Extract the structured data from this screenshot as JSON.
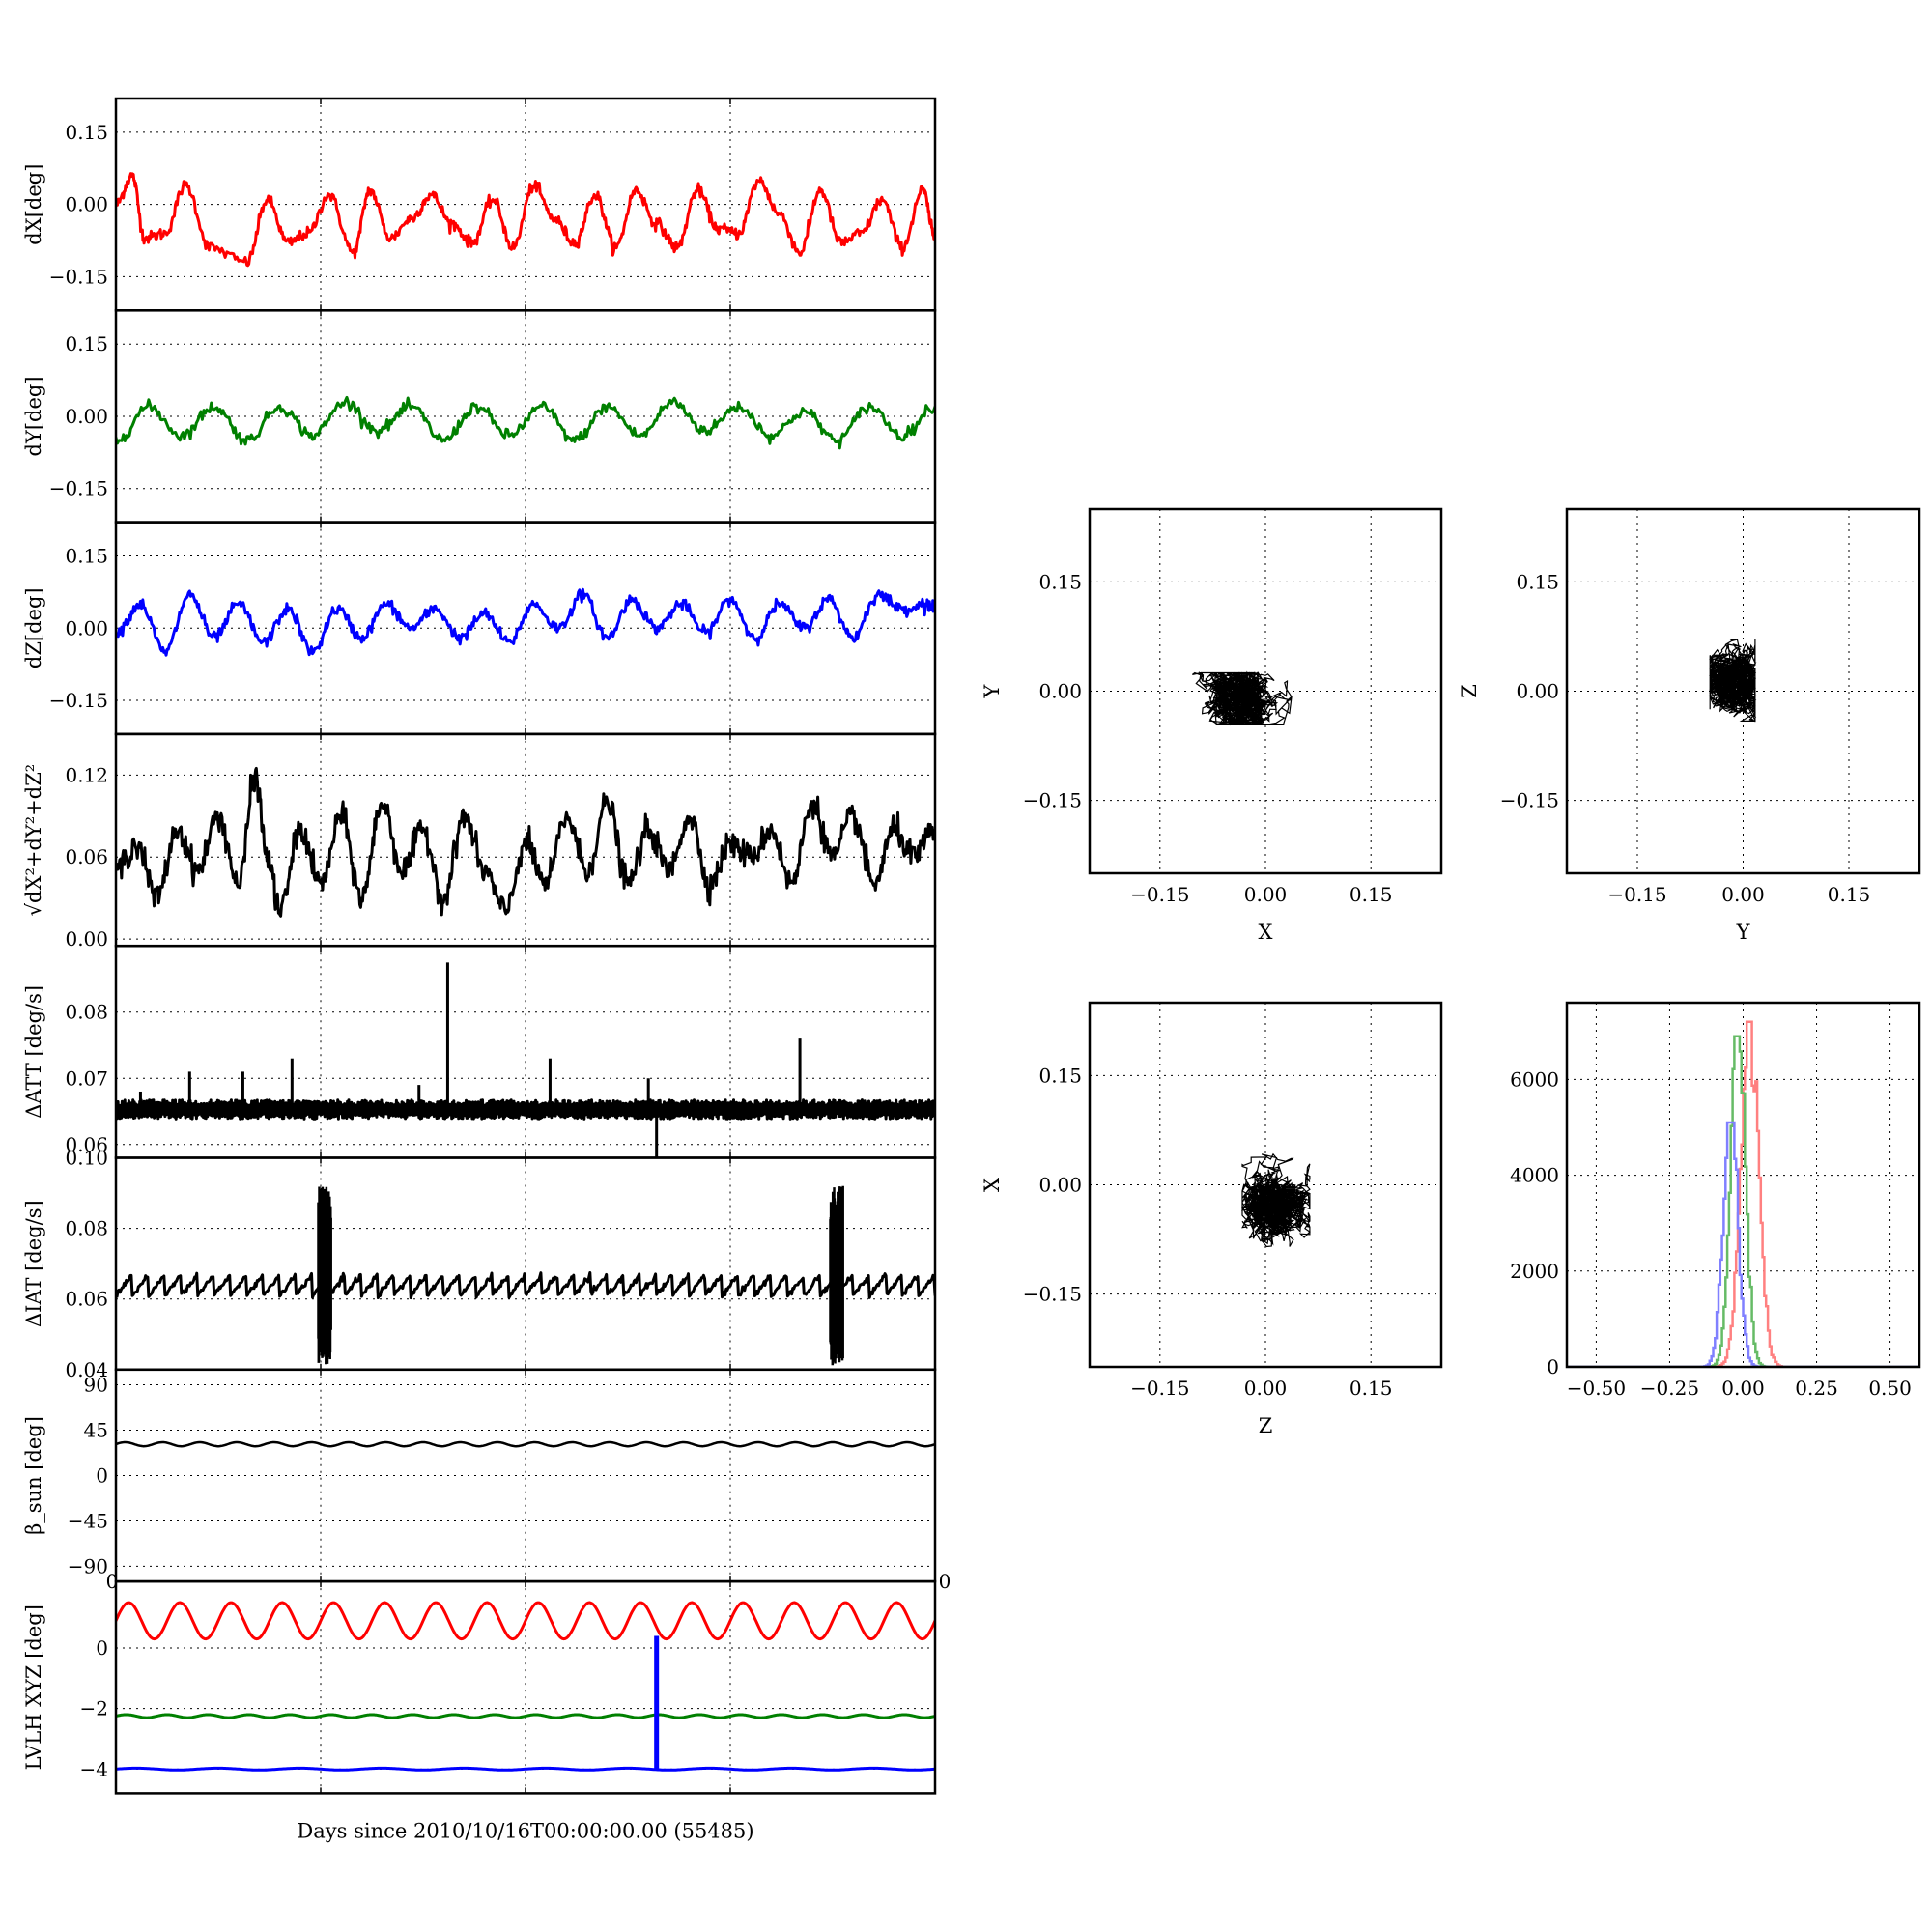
{
  "chart_data": [
    {
      "id": "ts_dx",
      "type": "line",
      "ylabel": "dX[deg]",
      "ylim": [
        -0.22,
        0.22
      ],
      "yticks": [
        0.15,
        0.0,
        -0.15
      ],
      "ytick_labels": [
        "0.15",
        "0.00",
        "−0.15"
      ],
      "xlim": [
        0,
        10
      ],
      "xticks": [
        0,
        2.5,
        5,
        7.5,
        10
      ],
      "grid": true,
      "series": [
        {
          "color": "#ff0000",
          "x": [
            0,
            0.2,
            0.35,
            0.6,
            0.85,
            1.15,
            1.6,
            1.85,
            2.1,
            2.35,
            2.6,
            2.9,
            3.1,
            3.35,
            3.6,
            3.85,
            4.1,
            4.35,
            4.6,
            4.85,
            5.1,
            5.35,
            5.6,
            5.85,
            6.1,
            6.35,
            6.6,
            6.85,
            7.1,
            7.35,
            7.6,
            7.85,
            8.1,
            8.35,
            8.6,
            8.85,
            9.1,
            9.35,
            9.6,
            9.85,
            10
          ],
          "y": [
            0,
            0.06,
            -0.07,
            -0.06,
            0.04,
            -0.09,
            -0.12,
            0.01,
            -0.08,
            -0.06,
            0.02,
            -0.1,
            0.03,
            -0.07,
            -0.03,
            0.02,
            -0.04,
            -0.08,
            0.01,
            -0.09,
            0.04,
            -0.03,
            -0.08,
            0.02,
            -0.09,
            0.03,
            -0.04,
            -0.09,
            0.03,
            -0.05,
            -0.06,
            0.05,
            -0.02,
            -0.1,
            0.03,
            -0.08,
            -0.06,
            0.01,
            -0.09,
            0.03,
            -0.07
          ]
        }
      ]
    },
    {
      "id": "ts_dy",
      "type": "line",
      "ylabel": "dY[deg]",
      "ylim": [
        -0.22,
        0.22
      ],
      "yticks": [
        0.15,
        0.0,
        -0.15
      ],
      "ytick_labels": [
        "0.15",
        "0.00",
        "−0.15"
      ],
      "xlim": [
        0,
        10
      ],
      "xticks": [
        0,
        2.5,
        5,
        7.5,
        10
      ],
      "grid": true,
      "series": [
        {
          "color": "#008000",
          "x": [
            0,
            0.4,
            0.8,
            1.2,
            1.6,
            2.0,
            2.4,
            2.8,
            3.2,
            3.6,
            4.0,
            4.4,
            4.8,
            5.2,
            5.6,
            6.0,
            6.4,
            6.8,
            7.2,
            7.6,
            8.0,
            8.4,
            8.8,
            9.2,
            9.6,
            10
          ],
          "y": [
            -0.05,
            0.02,
            -0.04,
            0.02,
            -0.05,
            0.02,
            -0.04,
            0.03,
            -0.03,
            0.02,
            -0.05,
            0.02,
            -0.04,
            0.02,
            -0.05,
            0.02,
            -0.04,
            0.03,
            -0.03,
            0.02,
            -0.04,
            0.01,
            -0.05,
            0.02,
            -0.04,
            0.02
          ]
        }
      ]
    },
    {
      "id": "ts_dz",
      "type": "line",
      "ylabel": "dZ[deg]",
      "ylim": [
        -0.22,
        0.22
      ],
      "yticks": [
        0.15,
        0.0,
        -0.15
      ],
      "ytick_labels": [
        "0.15",
        "0.00",
        "−0.15"
      ],
      "xlim": [
        0,
        10
      ],
      "xticks": [
        0,
        2.5,
        5,
        7.5,
        10
      ],
      "grid": true,
      "series": [
        {
          "color": "#0000ff",
          "x": [
            0,
            0.3,
            0.6,
            0.9,
            1.2,
            1.5,
            1.8,
            2.1,
            2.4,
            2.7,
            3.0,
            3.3,
            3.6,
            3.9,
            4.2,
            4.5,
            4.8,
            5.1,
            5.4,
            5.7,
            6.0,
            6.3,
            6.6,
            6.9,
            7.2,
            7.5,
            7.8,
            8.1,
            8.4,
            8.7,
            9.0,
            9.3,
            9.6,
            9.9,
            10
          ],
          "y": [
            -0.01,
            0.05,
            -0.05,
            0.07,
            -0.02,
            0.05,
            -0.03,
            0.04,
            -0.05,
            0.04,
            -0.02,
            0.05,
            0.0,
            0.04,
            -0.02,
            0.03,
            -0.03,
            0.05,
            0.0,
            0.07,
            -0.02,
            0.06,
            0.0,
            0.05,
            -0.01,
            0.06,
            -0.02,
            0.05,
            0.0,
            0.06,
            -0.02,
            0.07,
            0.04,
            0.05,
            0.04
          ]
        }
      ]
    },
    {
      "id": "ts_r",
      "type": "line",
      "ylabel": "√dX²+dY²+dZ²",
      "ylim": [
        -0.005,
        0.15
      ],
      "yticks": [
        0.12,
        0.06,
        0.0
      ],
      "ytick_labels": [
        "0.12",
        "0.06",
        "0.00"
      ],
      "xlim": [
        0,
        10
      ],
      "xticks": [
        0,
        2.5,
        5,
        7.5,
        10
      ],
      "grid": true,
      "series": [
        {
          "color": "#000000",
          "x": [
            0,
            0.25,
            0.5,
            0.75,
            1.0,
            1.25,
            1.5,
            1.7,
            1.85,
            2.0,
            2.25,
            2.5,
            2.75,
            3.0,
            3.25,
            3.5,
            3.75,
            4.0,
            4.25,
            4.5,
            4.75,
            5.0,
            5.25,
            5.5,
            5.75,
            6.0,
            6.25,
            6.5,
            6.75,
            7.0,
            7.25,
            7.5,
            7.75,
            8.0,
            8.25,
            8.5,
            8.75,
            9.0,
            9.25,
            9.5,
            9.75,
            10
          ],
          "y": [
            0.05,
            0.07,
            0.03,
            0.08,
            0.05,
            0.09,
            0.04,
            0.12,
            0.06,
            0.02,
            0.08,
            0.04,
            0.09,
            0.03,
            0.1,
            0.05,
            0.08,
            0.03,
            0.09,
            0.05,
            0.02,
            0.07,
            0.04,
            0.09,
            0.05,
            0.1,
            0.04,
            0.08,
            0.05,
            0.09,
            0.04,
            0.07,
            0.06,
            0.08,
            0.04,
            0.1,
            0.06,
            0.09,
            0.04,
            0.08,
            0.06,
            0.08
          ]
        }
      ]
    },
    {
      "id": "ts_datt",
      "type": "line",
      "ylabel": "ΔATT [deg/s]",
      "ylim": [
        0.058,
        0.09
      ],
      "yticks": [
        0.08,
        0.07,
        0.06
      ],
      "ytick_labels": [
        "0.08",
        "0.07",
        "0.06"
      ],
      "xlim": [
        0,
        10
      ],
      "xticks": [
        0,
        2.5,
        5,
        7.5,
        10
      ],
      "grid": true,
      "series": [
        {
          "color": "#000000",
          "baseline": 0.0653,
          "noise": 0.0012,
          "spikes_x": [
            0.3,
            0.9,
            1.55,
            2.15,
            4.05,
            5.3,
            6.5,
            8.35,
            3.7
          ],
          "spikes_y": [
            0.068,
            0.071,
            0.071,
            0.073,
            0.0875,
            0.073,
            0.07,
            0.076,
            0.069
          ],
          "dips_x": [
            6.6
          ],
          "dips_y": [
            0.0575
          ]
        }
      ]
    },
    {
      "id": "ts_diat",
      "type": "line",
      "ylabel": "ΔIAT [deg/s]",
      "ylim": [
        0.04,
        0.1
      ],
      "yticks": [
        0.1,
        0.08,
        0.06,
        0.04
      ],
      "ytick_labels": [
        "0.10",
        "0.08",
        "0.06",
        "0.04"
      ],
      "xlim": [
        0,
        10
      ],
      "xticks": [
        0,
        2.5,
        5,
        7.5,
        10
      ],
      "grid": true,
      "series": [
        {
          "color": "#000000",
          "baseline": 0.064,
          "sawtooth": 0.003,
          "bursts_x": [
            2.55,
            8.8
          ],
          "bursts_min": 0.041,
          "bursts_max": 0.092
        }
      ]
    },
    {
      "id": "ts_beta",
      "type": "line",
      "ylabel": "β_sun [deg]",
      "ylim": [
        -105,
        105
      ],
      "yticks": [
        90,
        45,
        0,
        -45,
        -90
      ],
      "ytick_labels": [
        "90",
        "45",
        "0",
        "−45",
        "−90"
      ],
      "xlim": [
        0,
        10
      ],
      "xticks": [
        0,
        2.5,
        5,
        7.5,
        10
      ],
      "grid": true,
      "corner_labels": [
        "0",
        "0"
      ],
      "series": [
        {
          "color": "#000000",
          "mean": 31,
          "amplitude": 2,
          "cycles": 22
        }
      ]
    },
    {
      "id": "ts_lvlh",
      "type": "line",
      "ylabel": "LVLH XYZ [deg]",
      "ylim": [
        -4.8,
        2.2
      ],
      "yticks": [
        0,
        -2,
        -4
      ],
      "ytick_labels": [
        "0",
        "−2",
        "−4"
      ],
      "xlim": [
        0,
        10
      ],
      "xticks": [
        0,
        2.5,
        5,
        7.5,
        10
      ],
      "grid": true,
      "xlabel": "Days since 2010/10/16T00:00:00.00 (55485)",
      "series": [
        {
          "color": "#ff0000",
          "mean": 0.9,
          "amplitude": 0.6,
          "cycles": 16
        },
        {
          "color": "#008000",
          "mean": -2.25,
          "amplitude": 0.05,
          "cycles": 20
        },
        {
          "color": "#0000ff",
          "mean": -4.0,
          "amplitude": 0.03,
          "cycles": 10,
          "spike_x": 6.6,
          "spike_top": 0.4,
          "spike_bottom": -4.0
        }
      ]
    },
    {
      "id": "sc_xy",
      "type": "scatter",
      "xlabel": "X",
      "ylabel": "Y",
      "xlim": [
        -0.25,
        0.25
      ],
      "ylim": [
        -0.25,
        0.25
      ],
      "ticks": [
        -0.15,
        0.0,
        0.15
      ],
      "tick_labels": [
        "−0.15",
        "0.00",
        "0.15"
      ],
      "grid": true,
      "color": "#000000",
      "center": [
        -0.035,
        -0.01
      ],
      "spread": [
        0.045,
        0.022
      ]
    },
    {
      "id": "sc_yz",
      "type": "scatter",
      "xlabel": "Y",
      "ylabel": "Z",
      "xlim": [
        -0.25,
        0.25
      ],
      "ylim": [
        -0.25,
        0.25
      ],
      "ticks": [
        -0.15,
        0.0,
        0.15
      ],
      "tick_labels": [
        "−0.15",
        "0.00",
        "0.15"
      ],
      "grid": true,
      "color": "#000000",
      "center": [
        -0.015,
        0.015
      ],
      "spread": [
        0.02,
        0.035
      ]
    },
    {
      "id": "sc_zx",
      "type": "scatter",
      "xlabel": "Z",
      "ylabel": "X",
      "xlim": [
        -0.25,
        0.25
      ],
      "ylim": [
        -0.25,
        0.25
      ],
      "ticks": [
        -0.15,
        0.0,
        0.15
      ],
      "tick_labels": [
        "−0.15",
        "0.00",
        "0.15"
      ],
      "grid": true,
      "color": "#000000",
      "center": [
        0.015,
        -0.03
      ],
      "spread": [
        0.03,
        0.045
      ]
    },
    {
      "id": "hist",
      "type": "line",
      "xlim": [
        -0.6,
        0.6
      ],
      "ylim": [
        0,
        7600
      ],
      "xticks": [
        -0.5,
        -0.25,
        0.0,
        0.25,
        0.5
      ],
      "xtick_labels": [
        "−0.50",
        "−0.25",
        "0.00",
        "0.25",
        "0.50"
      ],
      "yticks": [
        0,
        2000,
        4000,
        6000
      ],
      "ytick_labels": [
        "0",
        "2000",
        "4000",
        "6000"
      ],
      "grid": true,
      "series": [
        {
          "color": "#ff8080",
          "mean": 0.02,
          "sd": 0.03,
          "peak": 7200
        },
        {
          "color": "#66bb66",
          "mean": -0.02,
          "sd": 0.025,
          "peak": 6900
        },
        {
          "color": "#8080ff",
          "mean": -0.045,
          "sd": 0.025,
          "peak": 5100
        }
      ]
    }
  ]
}
